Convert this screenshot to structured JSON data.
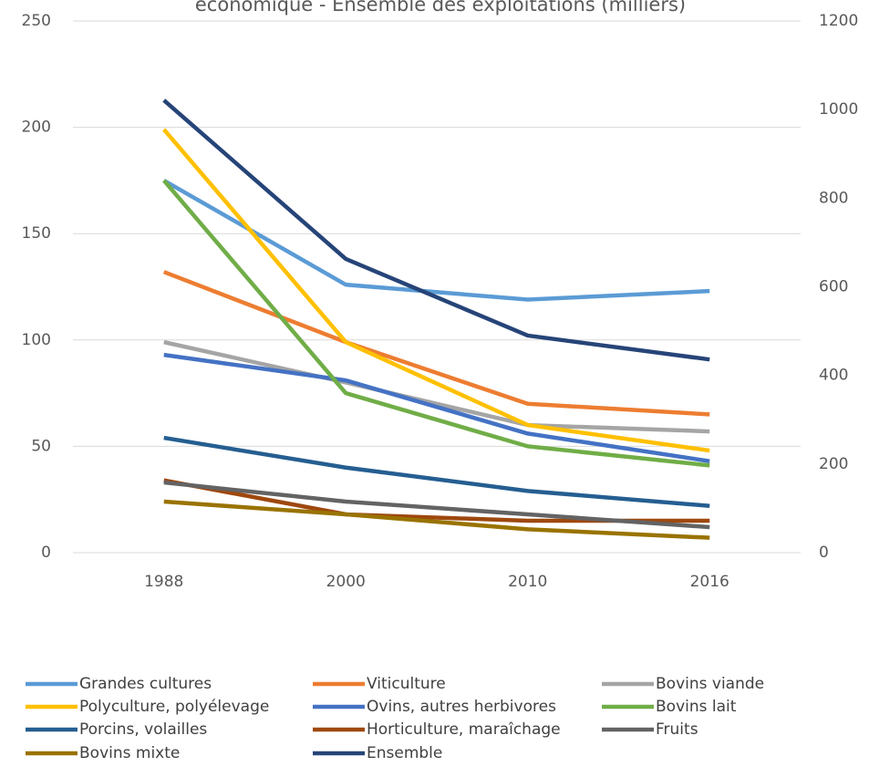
{
  "chart_data": {
    "type": "line",
    "title": "économique - Ensemble des exploitations (milliers)",
    "categories": [
      "1988",
      "2000",
      "2010",
      "2016"
    ],
    "ylim": [
      0,
      250
    ],
    "yticks": [
      0,
      50,
      100,
      150,
      200,
      250
    ],
    "y2lim": [
      0,
      1200
    ],
    "y2ticks": [
      0,
      200,
      400,
      600,
      800,
      1000,
      1200
    ],
    "grid": true,
    "legend": "bottom",
    "series": [
      {
        "name": "Grandes cultures",
        "color": "#5b9bd5",
        "values": [
          175,
          126,
          119,
          123
        ]
      },
      {
        "name": "Viticulture",
        "color": "#ed7d31",
        "values": [
          132,
          99,
          70,
          65
        ]
      },
      {
        "name": "Bovins viande",
        "color": "#a5a5a5",
        "values": [
          99,
          80,
          60,
          57
        ]
      },
      {
        "name": "Polyculture, polyélevage",
        "color": "#ffc000",
        "values": [
          199,
          99,
          60,
          48
        ]
      },
      {
        "name": "Ovins, autres herbivores",
        "color": "#4472c4",
        "values": [
          93,
          81,
          56,
          43
        ]
      },
      {
        "name": "Bovins lait",
        "color": "#70ad47",
        "values": [
          175,
          75,
          50,
          41
        ]
      },
      {
        "name": "Porcins, volailles",
        "color": "#255e91",
        "values": [
          54,
          40,
          29,
          22
        ]
      },
      {
        "name": "Horticulture, maraîchage",
        "color": "#9e480e",
        "values": [
          34,
          18,
          15,
          15
        ]
      },
      {
        "name": "Fruits",
        "color": "#636363",
        "values": [
          33,
          24,
          18,
          12
        ]
      },
      {
        "name": "Bovins mixte",
        "color": "#997300",
        "values": [
          24,
          18,
          11,
          7
        ]
      },
      {
        "name": "Ensemble",
        "color": "#264478",
        "values": [
          1021,
          663,
          490,
          436
        ],
        "axis": "y2"
      }
    ]
  }
}
